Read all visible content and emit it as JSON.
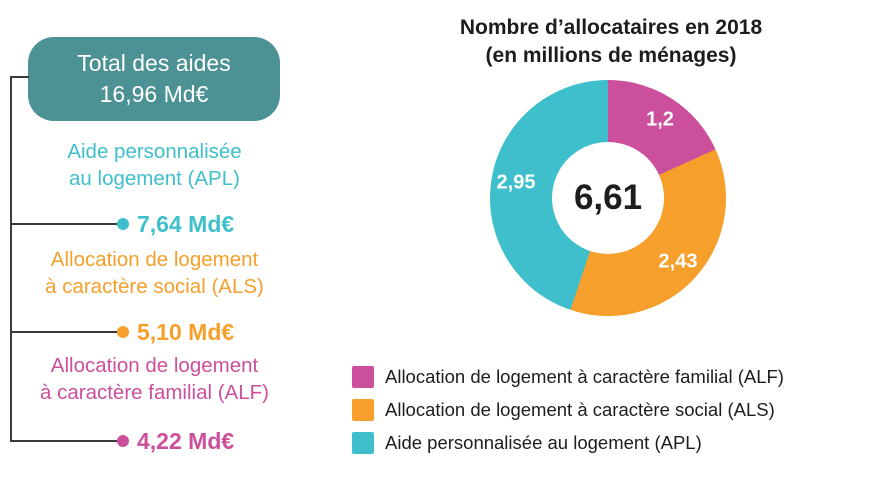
{
  "colors": {
    "total_box": "#4c9193",
    "connector": "#3b3b3b",
    "text_dark": "#1d1d1b"
  },
  "left_panel": {
    "total_box": {
      "line1": "Total des aides",
      "line2": "16,96 Md€"
    },
    "items": [
      {
        "label_line1": "Aide personnalisée",
        "label_line2": "au logement (APL)",
        "value": "7,64 Md€",
        "color": "#3ebfcb"
      },
      {
        "label_line1": "Allocation de logement",
        "label_line2": "à caractère social (ALS)",
        "value": "5,10 Md€",
        "color": "#f6a02b"
      },
      {
        "label_line1": "Allocation de logement",
        "label_line2": "à caractère familial (ALF)",
        "value": "4,22 Md€",
        "color": "#cc4f9c"
      }
    ]
  },
  "chart_data": {
    "type": "pie",
    "donut": true,
    "title": "Nombre d’allocataires en 2018",
    "subtitle": "(en millions de ménages)",
    "center_total": "6,61",
    "legend_position": "bottom",
    "slices": [
      {
        "label": "Allocation de logement à caractère familial (ALF)",
        "value": 1.2,
        "display": "1,2",
        "color": "#cc4f9c"
      },
      {
        "label": "Allocation de logement à caractère social (ALS)",
        "value": 2.43,
        "display": "2,43",
        "color": "#f6a02b"
      },
      {
        "label": "Aide personnalisée au logement (APL)",
        "value": 2.95,
        "display": "2,95",
        "color": "#3ebfcb"
      }
    ]
  }
}
